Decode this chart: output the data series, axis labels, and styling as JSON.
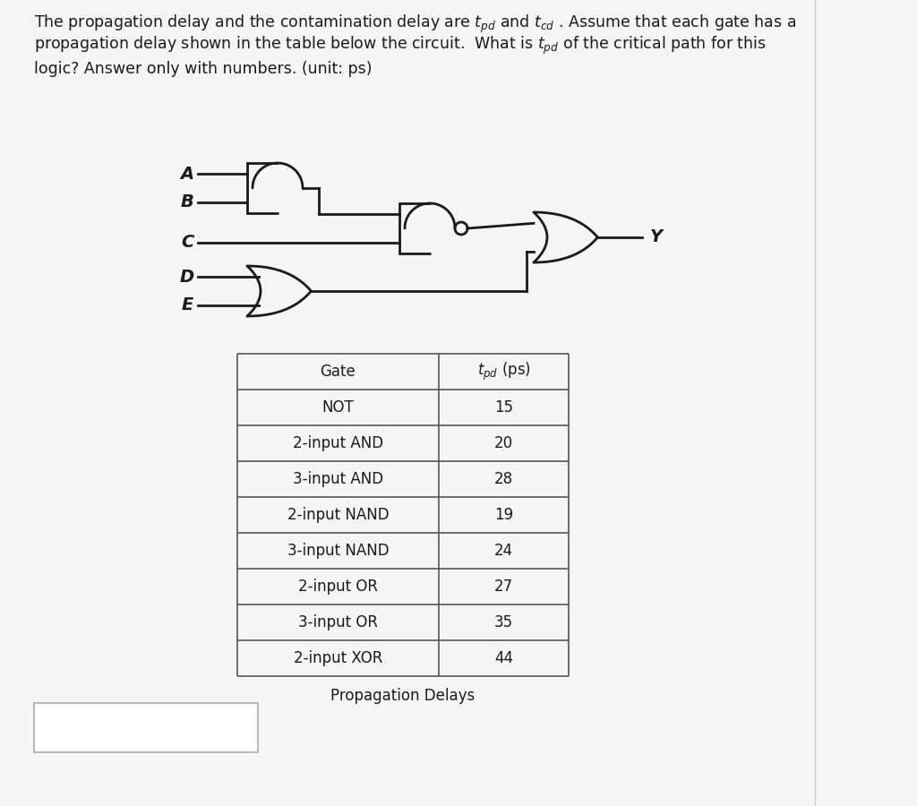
{
  "bg_color": "#f5f5f5",
  "line_color": "#1a1a1a",
  "text_color": "#1a1a1a",
  "table_gates": [
    "Gate",
    "NOT",
    "2-input AND",
    "3-input AND",
    "2-input NAND",
    "3-input NAND",
    "2-input OR",
    "3-input OR",
    "2-input XOR"
  ],
  "table_tpd": [
    "tpd_header",
    "15",
    "20",
    "28",
    "19",
    "24",
    "27",
    "35",
    "44"
  ],
  "table_caption": "Propagation Delays",
  "input_labels": [
    "A",
    "B",
    "C",
    "D",
    "E"
  ],
  "output_label": "Y",
  "header_fontsize": 12.5,
  "circuit_lw": 2.0,
  "table_lw": 1.2,
  "gate_text_fontsize": 12.0,
  "label_fontsize": 14
}
